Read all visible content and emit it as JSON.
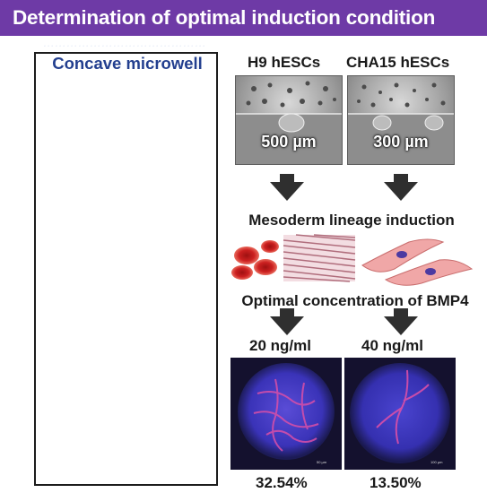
{
  "banner": {
    "title": "Determination of optimal induction condition"
  },
  "left_panel": {
    "title": "Concave microwell"
  },
  "columns": [
    {
      "cell_line": "H9 hESCs",
      "scale_label": "500 µm",
      "bmp4_concentration": "20 ng/ml",
      "result_percent": "32.54%"
    },
    {
      "cell_line": "CHA15 hESCs",
      "scale_label": "300 µm",
      "bmp4_concentration": "40 ng/ml",
      "result_percent": "13.50%"
    }
  ],
  "steps": {
    "lineage": "Mesoderm lineage induction",
    "bmp4": "Optimal concentration of BMP4"
  },
  "colors": {
    "banner": "#6e3aa6",
    "panel_title": "#233f8f",
    "microwell": "#2a7c8f",
    "cell_red": "#d9312b",
    "tissue_pink": "#f6d9d9",
    "cluster": "#4fb9d6",
    "arrow_purple": "#6b4fa3"
  }
}
